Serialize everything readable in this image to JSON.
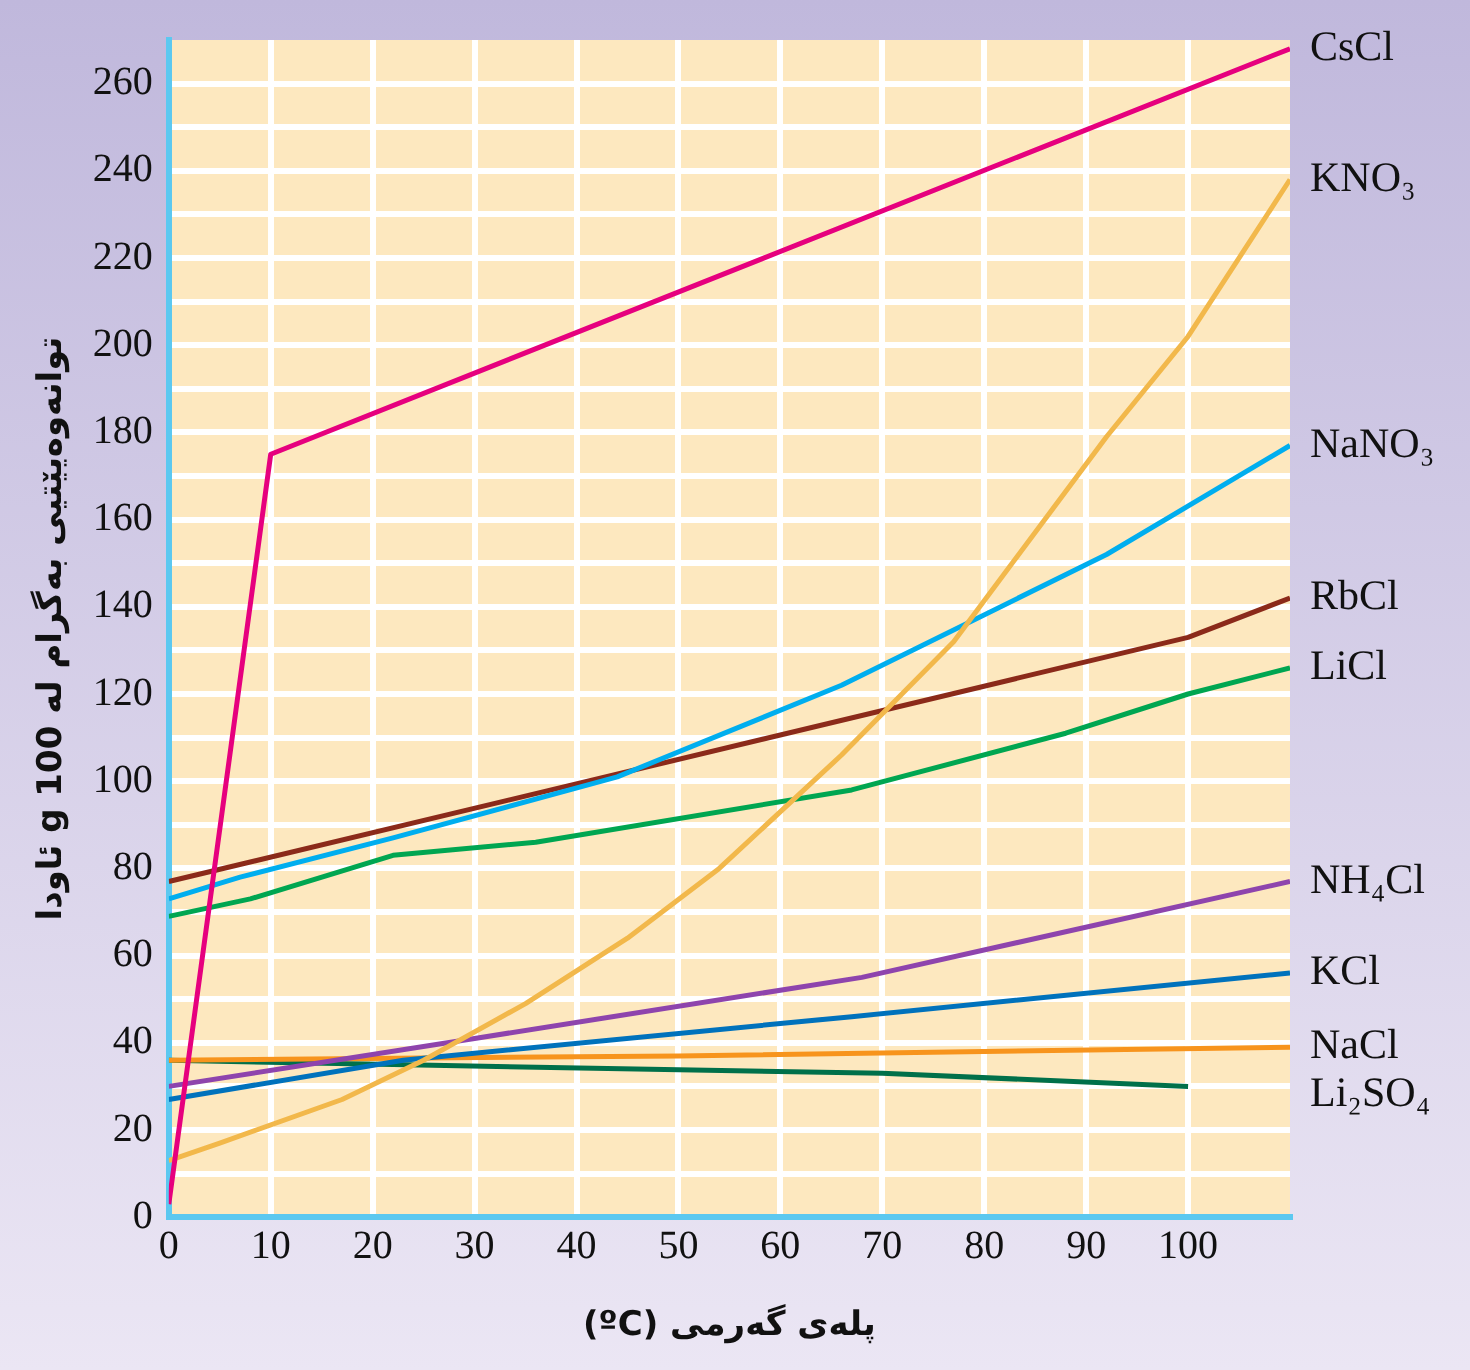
{
  "chart_data": {
    "type": "line",
    "xlabel": "پلەی گەرمی (ºC)",
    "ylabel": "توانەوەیێتیی بەگرام لە 100 g ئاودا",
    "xlim": [
      0,
      110
    ],
    "xticks": [
      0,
      10,
      20,
      30,
      40,
      50,
      60,
      70,
      80,
      90,
      100
    ],
    "ylim": [
      0,
      270
    ],
    "yticks": [
      0,
      {
        "value": 10,
        "label": null
      },
      20,
      {
        "value": 30,
        "label": null
      },
      40,
      {
        "value": 50,
        "label": null
      },
      60,
      {
        "value": 70,
        "label": null
      },
      80,
      {
        "value": 90,
        "label": null
      },
      100,
      {
        "value": 110,
        "label": null
      },
      120,
      {
        "value": 130,
        "label": null
      },
      140,
      {
        "value": 150,
        "label": null
      },
      160,
      {
        "value": 170,
        "label": null
      },
      180,
      {
        "value": 190,
        "label": null
      },
      200,
      {
        "value": 210,
        "label": null
      },
      220,
      {
        "value": 230,
        "label": null
      },
      240,
      {
        "value": 250,
        "label": null
      },
      260
    ],
    "grid": true,
    "legend": false,
    "line_style": "solid",
    "series": [
      {
        "name": "CsCl",
        "color": "#e6007e",
        "x": [
          0,
          10,
          110
        ],
        "values": [
          3,
          175,
          268
        ]
      },
      {
        "name": "KNO₃",
        "color": "#f2b84b",
        "x": [
          0,
          5,
          17,
          25,
          35,
          45,
          54,
          66,
          77,
          92,
          100,
          110
        ],
        "values": [
          13,
          17,
          27,
          36,
          49,
          64,
          80,
          106,
          132,
          179,
          202,
          238
        ]
      },
      {
        "name": "NaNO₃",
        "color": "#00aeef",
        "x": [
          0,
          7,
          22,
          44,
          66,
          92,
          110
        ],
        "values": [
          73,
          78,
          87,
          101,
          122,
          152,
          177
        ]
      },
      {
        "name": "RbCl",
        "color": "#8b2a1a",
        "x": [
          0,
          100,
          110
        ],
        "values": [
          77,
          133,
          142
        ]
      },
      {
        "name": "LiCl",
        "color": "#00a651",
        "x": [
          0,
          8,
          22,
          36,
          67,
          88,
          100,
          110
        ],
        "values": [
          69,
          73,
          83,
          86,
          98,
          111,
          120,
          126
        ]
      },
      {
        "name": "NH₄Cl",
        "color": "#8e44ad",
        "x": [
          0,
          30,
          68,
          110
        ],
        "values": [
          30,
          41,
          55,
          77
        ]
      },
      {
        "name": "KCl",
        "color": "#0072bc",
        "x": [
          0,
          23,
          67,
          110
        ],
        "values": [
          27,
          36,
          46,
          56
        ]
      },
      {
        "name": "NaCl",
        "color": "#f7941d",
        "x": [
          0,
          50,
          110
        ],
        "values": [
          36,
          37,
          39
        ]
      },
      {
        "name": "Li₂SO₄",
        "color": "#00704a",
        "x": [
          0,
          22,
          70,
          100
        ],
        "values": [
          36,
          35,
          33,
          30
        ]
      }
    ]
  }
}
